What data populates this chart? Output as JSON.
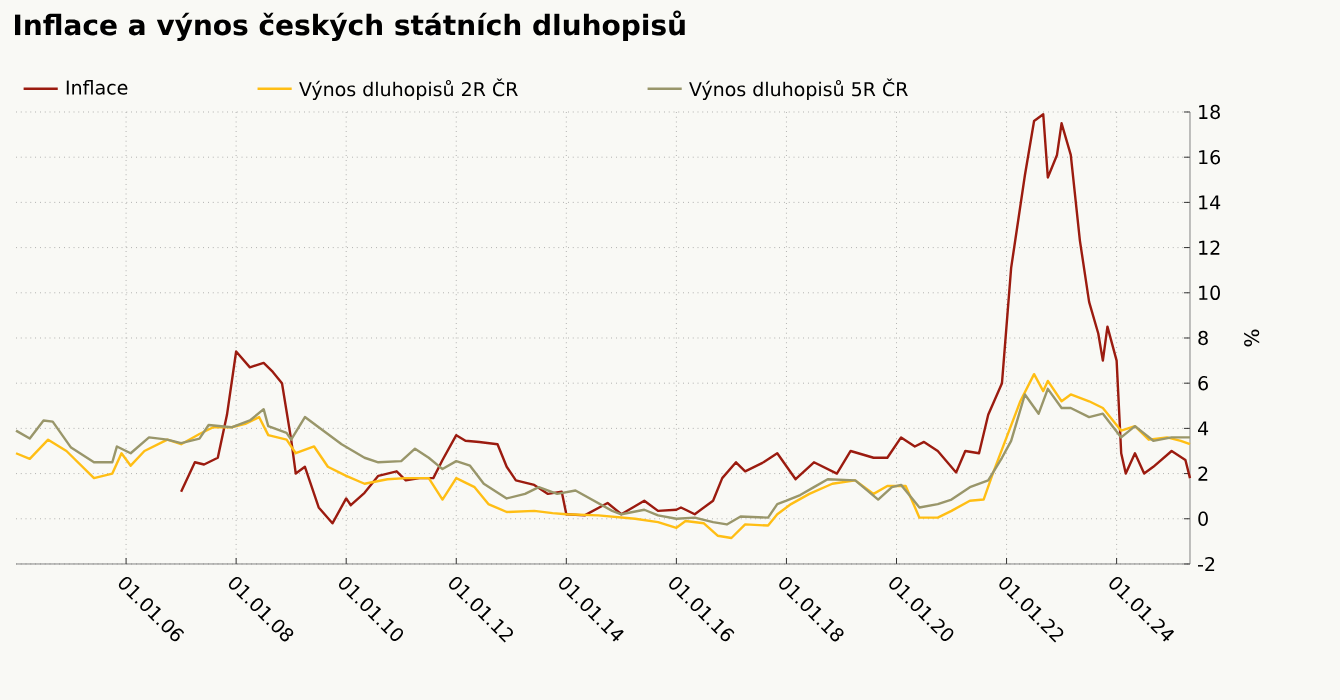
{
  "chart_data": {
    "type": "line",
    "title": "Inflace a výnos českých státních dluhopisů",
    "ylabel": "%",
    "legend": "top",
    "grid": true,
    "line_style": "solid",
    "xlim": [
      "2004-01",
      "2025-05"
    ],
    "xticks": [
      {
        "value": "2006-01-01",
        "label": "01.01.06"
      },
      {
        "value": "2008-01-01",
        "label": "01.01.08"
      },
      {
        "value": "2010-01-01",
        "label": "01.01.10"
      },
      {
        "value": "2012-01-01",
        "label": "01.01.12"
      },
      {
        "value": "2014-01-01",
        "label": "01.01.14"
      },
      {
        "value": "2016-01-01",
        "label": "01.01.16"
      },
      {
        "value": "2018-01-01",
        "label": "01.01.18"
      },
      {
        "value": "2020-01-01",
        "label": "01.01.20"
      },
      {
        "value": "2022-01-01",
        "label": "01.01.22"
      },
      {
        "value": "2024-01-01",
        "label": "01.01.24"
      }
    ],
    "ylim": [
      -2,
      18
    ],
    "yticks": [
      -2,
      0,
      2,
      4,
      6,
      8,
      10,
      12,
      14,
      16,
      18
    ],
    "series": [
      {
        "name": "Inflace",
        "color": "#9b1b0f",
        "x": [
          "2007-01",
          "2007-04",
          "2007-06",
          "2007-09",
          "2007-11",
          "2008-01",
          "2008-04",
          "2008-07",
          "2008-09",
          "2008-11",
          "2009-01",
          "2009-02",
          "2009-04",
          "2009-07",
          "2009-10",
          "2010-01",
          "2010-02",
          "2010-05",
          "2010-08",
          "2010-12",
          "2011-02",
          "2011-05",
          "2011-08",
          "2011-10",
          "2012-01",
          "2012-03",
          "2012-06",
          "2012-10",
          "2012-12",
          "2013-02",
          "2013-06",
          "2013-09",
          "2013-12",
          "2014-01",
          "2014-05",
          "2014-10",
          "2015-01",
          "2015-06",
          "2015-09",
          "2016-01",
          "2016-02",
          "2016-05",
          "2016-09",
          "2016-11",
          "2017-02",
          "2017-04",
          "2017-08",
          "2017-11",
          "2018-03",
          "2018-07",
          "2018-12",
          "2019-03",
          "2019-08",
          "2019-11",
          "2020-02",
          "2020-05",
          "2020-07",
          "2020-10",
          "2021-02",
          "2021-04",
          "2021-07",
          "2021-09",
          "2021-12",
          "2022-02",
          "2022-05",
          "2022-07",
          "2022-09",
          "2022-10",
          "2022-12",
          "2023-01",
          "2023-03",
          "2023-05",
          "2023-07",
          "2023-09",
          "2023-10",
          "2023-11",
          "2024-01",
          "2024-02",
          "2024-03",
          "2024-05",
          "2024-07",
          "2024-09",
          "2025-01",
          "2025-04",
          "2025-05"
        ],
        "values": [
          1.2,
          2.5,
          2.4,
          2.7,
          4.6,
          7.4,
          6.7,
          6.9,
          6.5,
          6.0,
          3.5,
          2.0,
          2.3,
          0.5,
          -0.2,
          0.9,
          0.6,
          1.15,
          1.9,
          2.1,
          1.7,
          1.8,
          1.8,
          2.6,
          3.7,
          3.45,
          3.4,
          3.3,
          2.3,
          1.7,
          1.5,
          1.1,
          1.2,
          0.2,
          0.15,
          0.7,
          0.2,
          0.8,
          0.35,
          0.4,
          0.5,
          0.2,
          0.8,
          1.8,
          2.5,
          2.1,
          2.5,
          2.9,
          1.75,
          2.5,
          2.0,
          3.0,
          2.7,
          2.7,
          3.6,
          3.2,
          3.4,
          3.0,
          2.05,
          3.0,
          2.9,
          4.6,
          6.0,
          11.1,
          15.2,
          17.6,
          17.9,
          15.1,
          16.1,
          17.5,
          16.1,
          12.3,
          9.6,
          8.2,
          7.0,
          8.5,
          7.0,
          2.9,
          2.0,
          2.9,
          2.0,
          2.3,
          3.0,
          2.6,
          1.8
        ]
      },
      {
        "name": "Výnos dluhopisů 2R ČR",
        "color": "#ffbe14",
        "x": [
          "2004-01",
          "2004-04",
          "2004-08",
          "2004-12",
          "2005-06",
          "2005-10",
          "2005-12",
          "2006-02",
          "2006-05",
          "2006-10",
          "2007-01",
          "2007-05",
          "2007-08",
          "2007-12",
          "2008-03",
          "2008-06",
          "2008-08",
          "2008-12",
          "2009-02",
          "2009-06",
          "2009-09",
          "2010-01",
          "2010-05",
          "2010-10",
          "2011-02",
          "2011-07",
          "2011-10",
          "2012-01",
          "2012-05",
          "2012-08",
          "2012-12",
          "2013-06",
          "2013-10",
          "2014-01",
          "2014-08",
          "2015-04",
          "2015-09",
          "2016-01",
          "2016-03",
          "2016-07",
          "2016-10",
          "2017-01",
          "2017-04",
          "2017-09",
          "2017-11",
          "2018-02",
          "2018-06",
          "2018-11",
          "2019-04",
          "2019-08",
          "2019-11",
          "2020-03",
          "2020-06",
          "2020-10",
          "2021-01",
          "2021-05",
          "2021-08",
          "2021-10",
          "2022-01",
          "2022-04",
          "2022-07",
          "2022-09",
          "2022-10",
          "2023-01",
          "2023-03",
          "2023-07",
          "2023-10",
          "2024-02",
          "2024-05",
          "2024-08",
          "2024-12",
          "2025-03",
          "2025-05"
        ],
        "values": [
          2.9,
          2.65,
          3.5,
          3.0,
          1.8,
          2.0,
          2.9,
          2.35,
          3.0,
          3.5,
          3.3,
          3.75,
          4.05,
          4.05,
          4.2,
          4.5,
          3.7,
          3.5,
          2.9,
          3.2,
          2.3,
          1.9,
          1.55,
          1.75,
          1.8,
          1.8,
          0.85,
          1.8,
          1.4,
          0.65,
          0.3,
          0.35,
          0.25,
          0.2,
          0.15,
          0.0,
          -0.15,
          -0.4,
          -0.1,
          -0.2,
          -0.75,
          -0.85,
          -0.25,
          -0.3,
          0.2,
          0.65,
          1.1,
          1.55,
          1.7,
          1.1,
          1.45,
          1.45,
          0.05,
          0.05,
          0.35,
          0.8,
          0.85,
          2.0,
          3.6,
          5.2,
          6.4,
          5.65,
          6.1,
          5.2,
          5.5,
          5.2,
          4.9,
          3.9,
          4.1,
          3.5,
          3.6,
          3.45,
          3.3
        ]
      },
      {
        "name": "Výnos dluhopisů 5R ČR",
        "color": "#99966a",
        "x": [
          "2004-01",
          "2004-04",
          "2004-07",
          "2004-09",
          "2005-01",
          "2005-06",
          "2005-10",
          "2005-11",
          "2006-02",
          "2006-06",
          "2006-10",
          "2007-01",
          "2007-05",
          "2007-07",
          "2007-12",
          "2008-04",
          "2008-07",
          "2008-08",
          "2008-12",
          "2009-01",
          "2009-04",
          "2009-07",
          "2009-12",
          "2010-05",
          "2010-08",
          "2011-01",
          "2011-04",
          "2011-07",
          "2011-10",
          "2012-01",
          "2012-04",
          "2012-07",
          "2012-12",
          "2013-04",
          "2013-07",
          "2013-11",
          "2014-03",
          "2014-07",
          "2014-11",
          "2015-01",
          "2015-06",
          "2015-09",
          "2016-01",
          "2016-05",
          "2016-09",
          "2016-12",
          "2017-03",
          "2017-09",
          "2017-11",
          "2018-01",
          "2018-04",
          "2018-07",
          "2018-10",
          "2019-04",
          "2019-09",
          "2019-12",
          "2020-02",
          "2020-06",
          "2020-10",
          "2021-01",
          "2021-05",
          "2021-09",
          "2021-12",
          "2022-02",
          "2022-05",
          "2022-08",
          "2022-10",
          "2023-01",
          "2023-03",
          "2023-07",
          "2023-10",
          "2024-02",
          "2024-05",
          "2024-09",
          "2025-01",
          "2025-05"
        ],
        "values": [
          3.9,
          3.55,
          4.35,
          4.3,
          3.15,
          2.5,
          2.5,
          3.2,
          2.9,
          3.6,
          3.5,
          3.35,
          3.55,
          4.15,
          4.05,
          4.35,
          4.85,
          4.1,
          3.8,
          3.5,
          4.5,
          4.05,
          3.3,
          2.7,
          2.5,
          2.55,
          3.1,
          2.7,
          2.2,
          2.55,
          2.35,
          1.55,
          0.9,
          1.1,
          1.4,
          1.1,
          1.25,
          0.8,
          0.35,
          0.2,
          0.4,
          0.15,
          0.0,
          0.05,
          -0.15,
          -0.25,
          0.1,
          0.05,
          0.65,
          0.8,
          1.05,
          1.4,
          1.75,
          1.7,
          0.85,
          1.4,
          1.5,
          0.5,
          0.65,
          0.85,
          1.4,
          1.7,
          2.7,
          3.45,
          5.5,
          4.65,
          5.75,
          4.9,
          4.9,
          4.5,
          4.65,
          3.6,
          4.1,
          3.45,
          3.6,
          3.6
        ]
      }
    ]
  }
}
